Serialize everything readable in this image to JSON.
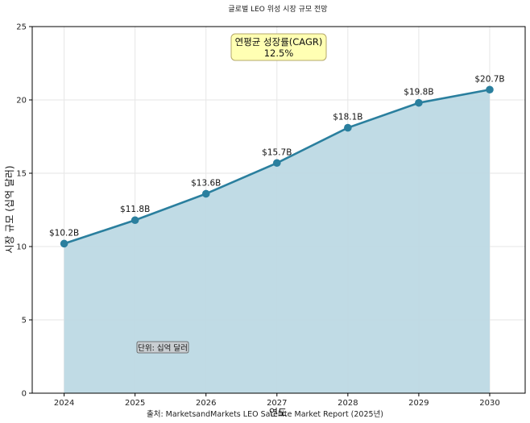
{
  "chart_data": {
    "type": "area",
    "title": "글로벌 LEO 위성 시장 규모 전망",
    "xlabel": "연도",
    "ylabel": "시장 규모 (십억 달러)",
    "x": [
      2024,
      2025,
      2026,
      2027,
      2028,
      2029,
      2030
    ],
    "series": [
      {
        "values": [
          10.2,
          11.8,
          13.6,
          15.7,
          18.1,
          19.8,
          20.7
        ],
        "labels": [
          "$10.2B",
          "$11.8B",
          "$13.6B",
          "$15.7B",
          "$18.1B",
          "$19.8B",
          "$20.7B"
        ]
      }
    ],
    "ylim": [
      0,
      25
    ],
    "yticks": [
      0,
      5,
      10,
      15,
      20,
      25
    ],
    "grid": true,
    "annotations": {
      "cagr_line1": "연평균 성장률(CAGR)",
      "cagr_line2": "12.5%",
      "unit_note": "단위: 십억 달러"
    },
    "source": "출처: MarketsandMarkets LEO Satellite Market Report (2025년)",
    "colors": {
      "line": "#2a7f9e",
      "fill": "#bdd9e4",
      "annotation_bg": "#ffffb3",
      "annotation_border": "#b5a86a"
    }
  }
}
